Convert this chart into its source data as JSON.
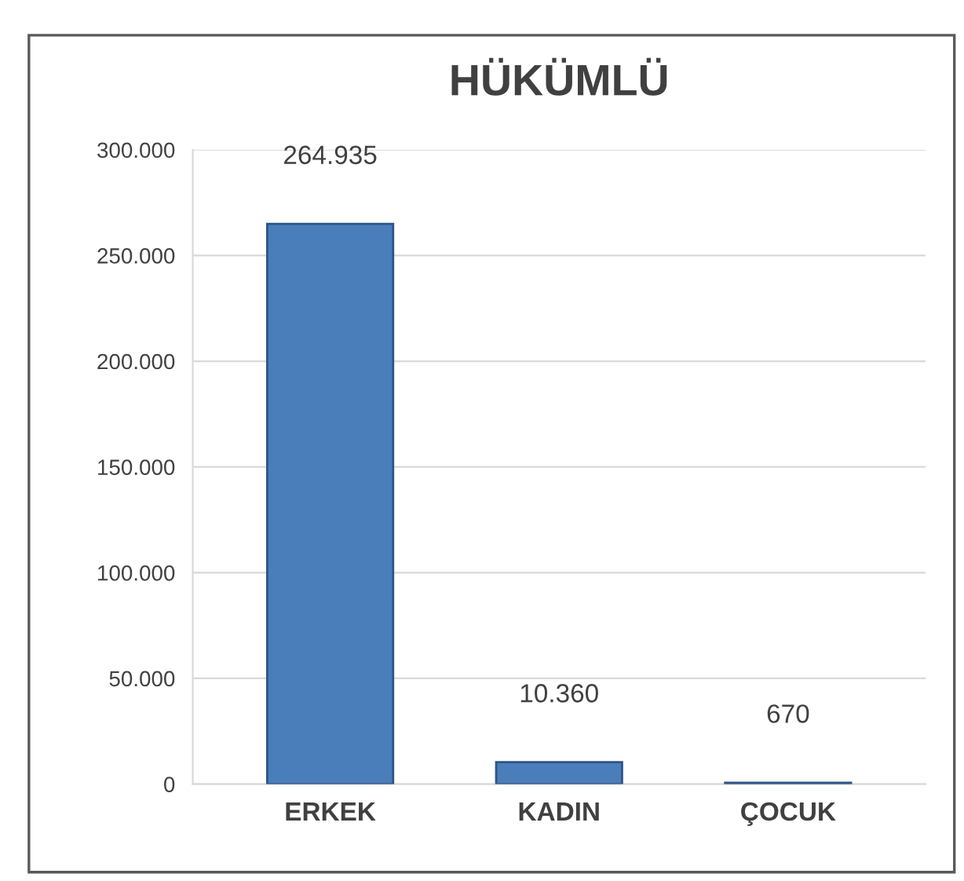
{
  "chart_data": {
    "type": "bar",
    "title": "HÜKÜMLÜ",
    "categories": [
      "ERKEK",
      "KADIN",
      "ÇOCUK"
    ],
    "values": [
      264935,
      10360,
      670
    ],
    "value_labels": [
      "264.935",
      "10.360",
      "670"
    ],
    "color": "#4a7ebb",
    "ylim": [
      0,
      300000
    ],
    "yticks": [
      {
        "value": 0,
        "label": "0"
      },
      {
        "value": 50000,
        "label": "50.000"
      },
      {
        "value": 100000,
        "label": "100.000"
      },
      {
        "value": 150000,
        "label": "150.000"
      },
      {
        "value": 200000,
        "label": "200.000"
      },
      {
        "value": 250000,
        "label": "250.000"
      },
      {
        "value": 300000,
        "label": "300.000"
      }
    ],
    "grid": "y"
  }
}
